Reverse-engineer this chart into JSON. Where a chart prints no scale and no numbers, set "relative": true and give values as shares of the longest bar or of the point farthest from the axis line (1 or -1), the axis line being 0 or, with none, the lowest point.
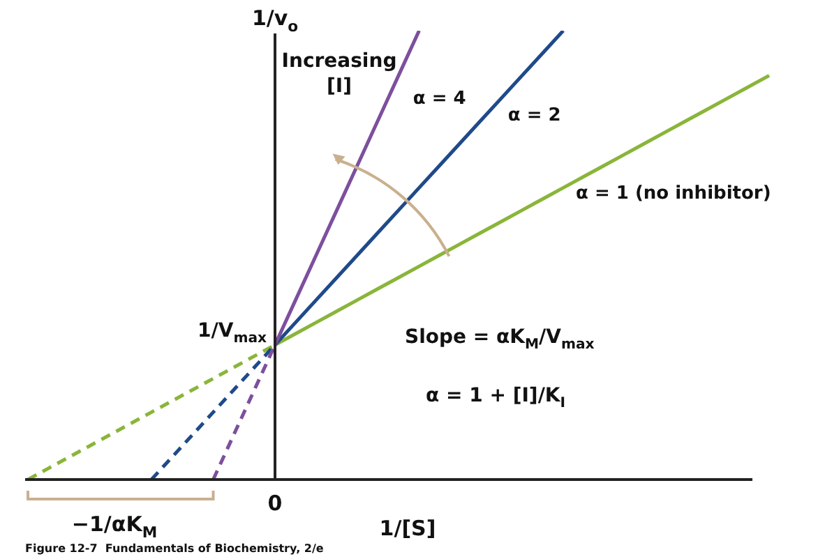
{
  "chart_data": {
    "type": "line",
    "relative": true,
    "xlabel": "1/[S]",
    "ylabel": "1/v$_{o}$",
    "categories": [
      null,
      null,
      null,
      null,
      null,
      null,
      null,
      null,
      null,
      null,
      null,
      null,
      null,
      null,
      null,
      null,
      null,
      null,
      null,
      null,
      null,
      null,
      null,
      null,
      null,
      null,
      null,
      null,
      null,
      null,
      null,
      null,
      null,
      null,
      null,
      null,
      null
    ],
    "series": [
      {
        "name": "α = 4",
        "color": "#7d4f9e",
        "values": [
          null,
          null,
          null,
          null,
          null,
          null,
          null,
          null,
          null,
          null,
          null,
          null,
          0.3,
          0.4,
          0.5,
          0.6,
          0.7,
          0.8,
          0.9,
          1.0,
          null,
          null,
          null,
          null,
          null,
          null,
          null,
          null,
          null,
          null,
          null,
          null,
          null,
          null,
          null,
          null,
          null
        ]
      },
      {
        "name": "α = 2",
        "color": "#1f4a8a",
        "values": [
          null,
          null,
          null,
          null,
          null,
          null,
          null,
          null,
          null,
          null,
          null,
          null,
          0.3,
          0.35,
          0.4,
          0.45,
          0.5,
          0.55,
          0.6,
          0.65,
          0.7,
          0.75,
          0.8,
          0.85,
          0.9,
          0.95,
          1.0,
          null,
          null,
          null,
          null,
          null,
          null,
          null,
          null,
          null,
          null
        ]
      },
      {
        "name": "α = 1 (no inhibitor)",
        "color": "#8ab53a",
        "values": [
          null,
          null,
          null,
          null,
          null,
          null,
          null,
          null,
          null,
          null,
          null,
          null,
          0.3,
          0.325,
          0.35,
          0.375,
          0.4,
          0.425,
          0.45,
          0.475,
          0.5,
          0.525,
          0.55,
          0.575,
          0.6,
          0.625,
          0.65,
          0.675,
          0.7,
          0.725,
          0.75,
          0.775,
          0.8,
          0.825,
          0.85,
          0.875,
          0.9
        ]
      },
      {
        "color": "#7d4f9e",
        "line_style": "dashed",
        "values": [
          null,
          null,
          null,
          null,
          null,
          null,
          null,
          null,
          null,
          0,
          0.1,
          0.2,
          0.3,
          null,
          null,
          null,
          null,
          null,
          null,
          null,
          null,
          null,
          null,
          null,
          null,
          null,
          null,
          null,
          null,
          null,
          null,
          null,
          null,
          null,
          null,
          null,
          null
        ]
      },
      {
        "color": "#1f4a8a",
        "line_style": "dashed",
        "values": [
          null,
          null,
          null,
          null,
          null,
          null,
          0,
          0.05,
          0.1,
          0.15,
          0.2,
          0.25,
          0.3,
          null,
          null,
          null,
          null,
          null,
          null,
          null,
          null,
          null,
          null,
          null,
          null,
          null,
          null,
          null,
          null,
          null,
          null,
          null,
          null,
          null,
          null,
          null,
          null
        ]
      },
      {
        "color": "#8ab53a",
        "line_style": "dashed",
        "values": [
          0,
          0.025,
          0.05,
          0.075,
          0.1,
          0.125,
          0.15,
          0.175,
          0.2,
          0.225,
          0.25,
          0.275,
          0.3,
          null,
          null,
          null,
          null,
          null,
          null,
          null,
          null,
          null,
          null,
          null,
          null,
          null,
          null,
          null,
          null,
          null,
          null,
          null,
          null,
          null,
          null,
          null,
          null
        ]
      }
    ],
    "annotations": [
      "1/V$_{max}$",
      "0",
      "Increasing [I]",
      "Slope = αK$_{M}$/V$_{max}$",
      "α = 1 + [I]/K$_{I}$",
      "−1/αK$_{M}$",
      "Figure 12-7  Fundamentals of Biochemistry, 2/e"
    ],
    "legend": false
  }
}
